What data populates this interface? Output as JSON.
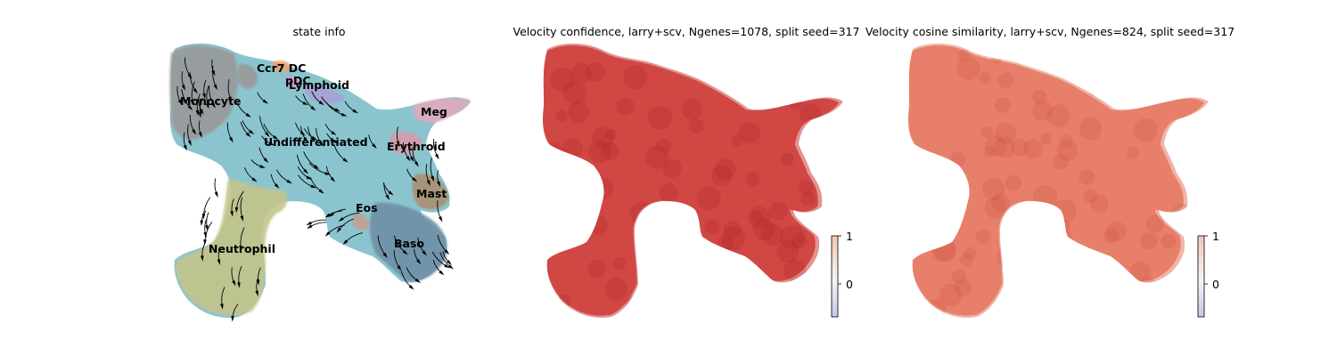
{
  "chart_data": [
    {
      "type": "scatter",
      "title": "state info",
      "xlabel": "",
      "ylabel": "",
      "grid": false,
      "stream_arrows": true,
      "groups": [
        {
          "name": "Ccr7_DC",
          "color": "#f0a070"
        },
        {
          "name": "pDC",
          "color": "#c9a0d0"
        },
        {
          "name": "Lymphoid",
          "color": "#a8a0d8"
        },
        {
          "name": "Monocyte",
          "color": "#999999"
        },
        {
          "name": "Meg",
          "color": "#e0a8bc"
        },
        {
          "name": "Undifferentiated",
          "color": "#8ac5cf"
        },
        {
          "name": "Erythroid",
          "color": "#d89aa8"
        },
        {
          "name": "Mast",
          "color": "#a89070"
        },
        {
          "name": "Eos",
          "color": "#c0a090"
        },
        {
          "name": "Baso",
          "color": "#6f8fa6"
        },
        {
          "name": "Neutrophil",
          "color": "#c4c48a"
        }
      ]
    },
    {
      "type": "scatter",
      "title": "Velocity confidence, larry+scv, Ngenes=1078, split seed=317",
      "xlabel": "",
      "ylabel": "",
      "grid": false,
      "colorbar": {
        "ticks": [
          0,
          1
        ],
        "cmap": [
          "#c3c8ea",
          "#f7f2f2",
          "#f3c6b4"
        ]
      },
      "point_color": "#cc3a36"
    },
    {
      "type": "scatter",
      "title": "Velocity cosine similarity, larry+scv, Ngenes=824, split seed=317",
      "xlabel": "",
      "ylabel": "",
      "grid": false,
      "colorbar": {
        "ticks": [
          0,
          1
        ],
        "cmap": [
          "#c3c8ea",
          "#f7f2f2",
          "#f3c6b4"
        ]
      },
      "point_color": "#e5765f"
    }
  ]
}
